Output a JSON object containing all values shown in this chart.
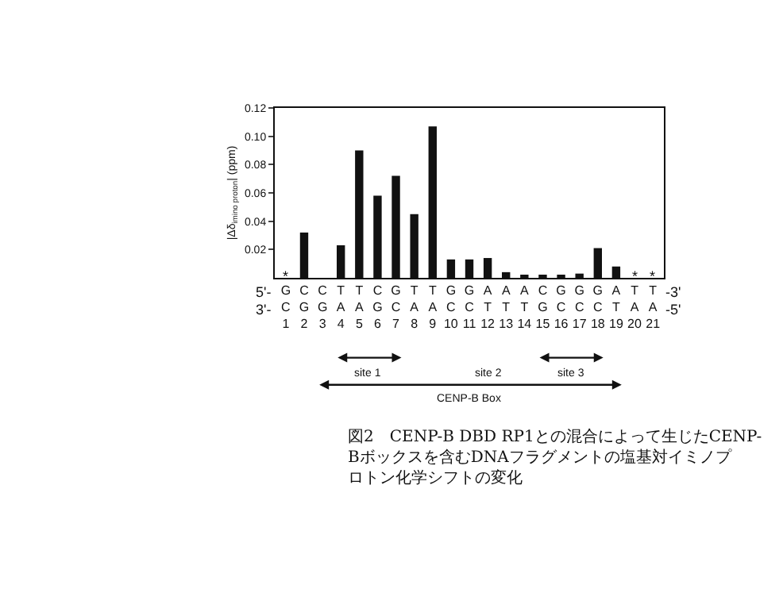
{
  "chart_data": {
    "type": "bar",
    "title": "図2　CENP-B DBD RP1との混合によって生じたCENP-Bボックスを含むDNAフラグメントの塩基対イミノプロトン化学シフトの変化",
    "ylabel": "|Δδ$_{imino proton}$| (ppm)",
    "categories": [
      "G\nC\n1",
      "C\nG\n2",
      "C\nG\n3",
      "T\nA\n4",
      "T\nA\n5",
      "C\nG\n6",
      "G\nC\n7",
      "T\nA\n8",
      "T\nA\n9",
      "G\nC\n10",
      "G\nC\n11",
      "A\nT\n12",
      "A\nT\n13",
      "A\nT\n14",
      "C\nG\n15",
      "G\nC\n16",
      "G\nC\n17",
      "G\nC\n18",
      "A\nT\n19",
      "T\nA\n20",
      "T\nA\n21"
    ],
    "values": [
      null,
      0.032,
      0,
      0.023,
      0.09,
      0.058,
      0.072,
      0.045,
      0.107,
      0.013,
      0.013,
      0.014,
      0.004,
      0.002,
      0.002,
      0.002,
      0.003,
      0.021,
      0.008,
      null,
      null
    ],
    "color": "#111111",
    "ylim": [
      0,
      0.12
    ],
    "yticks": [
      0.02,
      0.04,
      0.06,
      0.08,
      {
        "value": 0.1,
        "label": "0.10"
      },
      0.12
    ],
    "annotations": [
      "*",
      "*",
      "*",
      "5'-",
      "-3'",
      "3'-",
      "-5'",
      "site 1",
      "site 2",
      "site 3",
      "CENP-B Box"
    ]
  }
}
